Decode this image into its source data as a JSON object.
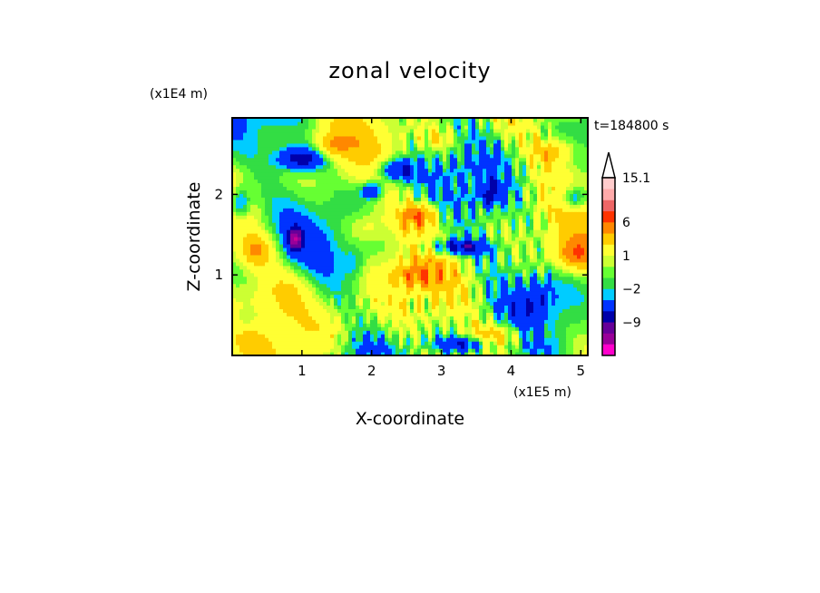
{
  "chart_data": {
    "type": "heatmap",
    "title": "zonal velocity",
    "xlabel": "X-coordinate",
    "ylabel": "Z-coordinate",
    "x_units": "(x1E5 m)",
    "y_units": "(x1E4 m)",
    "time_label": "t=184800 s",
    "x_ticks": [
      1,
      2,
      3,
      4,
      5
    ],
    "y_ticks": [
      1,
      2
    ],
    "xlim": [
      0,
      5.1
    ],
    "ylim": [
      0,
      2.95
    ],
    "colorbar": {
      "levels": [
        -13,
        -11,
        -9,
        -7,
        -5,
        -2,
        -1,
        0,
        1,
        2,
        4,
        6,
        8,
        10,
        12.5,
        15.1
      ],
      "colors": [
        "#ff00cc",
        "#cc0099",
        "#990099",
        "#660099",
        "#0000aa",
        "#0033ff",
        "#00ccff",
        "#33dd44",
        "#66ff33",
        "#ccff33",
        "#ffff33",
        "#ffcc00",
        "#ff8800",
        "#ff3300",
        "#ee6666",
        "#ffaaaa",
        "#ffcccc"
      ],
      "labels": [
        {
          "value": 15.1,
          "text": "15.1"
        },
        {
          "value": 6,
          "text": "6"
        },
        {
          "value": 1,
          "text": "1"
        },
        {
          "value": -2,
          "text": "−2"
        },
        {
          "value": -9,
          "text": "−9"
        }
      ]
    },
    "field_features": [
      {
        "x": 1.0,
        "z": 2.45,
        "sx": 0.35,
        "sz": 0.15,
        "v": -8
      },
      {
        "x": 2.35,
        "z": 2.3,
        "sx": 0.3,
        "sz": 0.15,
        "v": -7
      },
      {
        "x": 3.25,
        "z": 1.35,
        "sx": 0.45,
        "sz": 0.1,
        "v": -7
      },
      {
        "x": 0.9,
        "z": 1.45,
        "sx": 0.1,
        "sz": 0.15,
        "v": -8
      },
      {
        "x": 0.1,
        "z": 1.9,
        "sx": 0.15,
        "sz": 0.2,
        "v": -6
      },
      {
        "x": 2.0,
        "z": 2.05,
        "sx": 0.15,
        "sz": 0.1,
        "v": -7
      },
      {
        "x": 4.9,
        "z": 1.95,
        "sx": 0.2,
        "sz": 0.15,
        "v": -6
      },
      {
        "x": 3.7,
        "z": 2.0,
        "sx": 0.15,
        "sz": 0.15,
        "v": -5
      },
      {
        "x": 2.7,
        "z": 1.75,
        "sx": 0.3,
        "sz": 0.15,
        "v": 6
      },
      {
        "x": 0.35,
        "z": 1.3,
        "sx": 0.25,
        "sz": 0.2,
        "v": 5
      },
      {
        "x": 4.9,
        "z": 1.25,
        "sx": 0.3,
        "sz": 0.2,
        "v": 6
      },
      {
        "x": 2.6,
        "z": 1.0,
        "sx": 0.35,
        "sz": 0.15,
        "v": 4
      },
      {
        "x": 4.6,
        "z": 2.55,
        "sx": 0.3,
        "sz": 0.15,
        "v": 4
      },
      {
        "x": 1.4,
        "z": 2.6,
        "sx": 0.25,
        "sz": 0.15,
        "v": 4
      },
      {
        "x": 0.8,
        "z": 0.85,
        "sx": 0.5,
        "sz": 0.3,
        "v": 2.5
      },
      {
        "x": 1.5,
        "z": 0.4,
        "sx": 0.35,
        "sz": 0.25,
        "v": 2
      },
      {
        "x": 0.2,
        "z": 0.45,
        "sx": 0.2,
        "sz": 0.15,
        "v": -2
      },
      {
        "x": 1.75,
        "z": 1.15,
        "sx": 0.15,
        "sz": 0.2,
        "v": -2
      },
      {
        "x": 3.8,
        "z": 0.25,
        "sx": 0.4,
        "sz": 0.15,
        "v": 5
      },
      {
        "x": 4.4,
        "z": 0.75,
        "sx": 0.25,
        "sz": 0.2,
        "v": -3
      },
      {
        "x": 3.3,
        "z": 0.15,
        "sx": 0.4,
        "sz": 0.1,
        "v": -6
      },
      {
        "x": 2.0,
        "z": 0.55,
        "sx": 0.3,
        "sz": 0.25,
        "v": 0.3
      },
      {
        "x": 3.0,
        "z": 2.7,
        "sx": 0.3,
        "sz": 0.15,
        "v": 3
      },
      {
        "x": 1.9,
        "z": 1.6,
        "sx": 0.3,
        "sz": 0.2,
        "v": 3
      }
    ]
  }
}
